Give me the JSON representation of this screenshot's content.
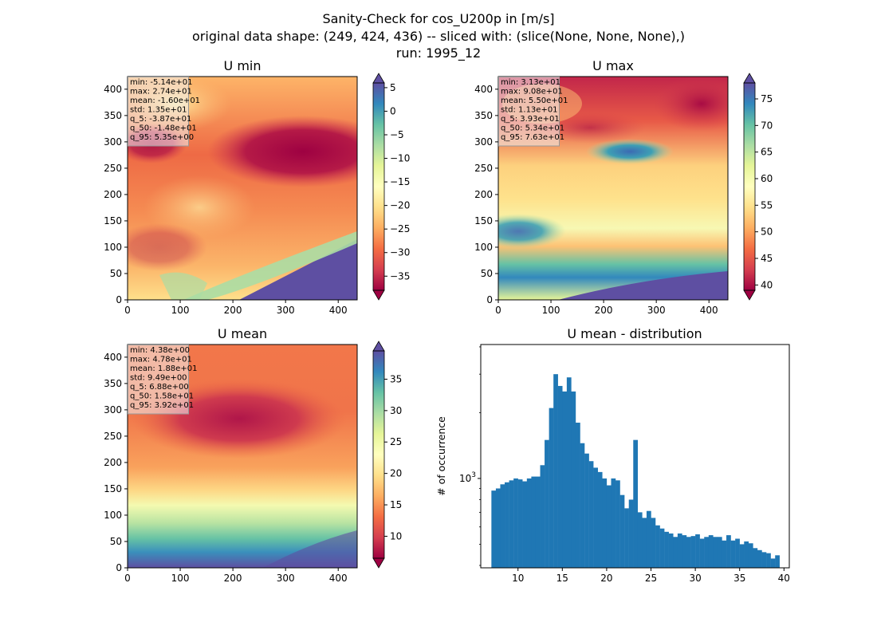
{
  "figure": {
    "title_lines": [
      "Sanity-Check for cos_U200p in [m/s]",
      "original data shape: (249, 424, 436) -- sliced with: (slice(None, None, None),)",
      "run: 1995_12"
    ]
  },
  "colors": {
    "histogram_bar": "#1f77b4",
    "stats_box": "#f2f2f2",
    "colormap": "Spectral"
  },
  "chart_data": [
    {
      "type": "heatmap",
      "title": "U min",
      "colormap": "Spectral",
      "xlim": [
        0,
        436
      ],
      "ylim": [
        0,
        424
      ],
      "xticks": [
        0,
        100,
        200,
        300,
        400
      ],
      "yticks": [
        0,
        50,
        100,
        150,
        200,
        250,
        300,
        350,
        400
      ],
      "colorbar": {
        "range": [
          -38,
          6
        ],
        "ticks": [
          5,
          0,
          -5,
          -10,
          -15,
          -20,
          -25,
          -30,
          -35
        ],
        "extend": "both"
      },
      "stats": [
        "min: -5.14e+01",
        "max: 2.74e+01",
        "mean: -1.60e+01",
        "std: 1.35e+01",
        "q_5: -3.87e+01",
        "q_50: -1.48e+01",
        "q_95: 5.35e+00"
      ]
    },
    {
      "type": "heatmap",
      "title": "U max",
      "colormap": "Spectral",
      "xlim": [
        0,
        436
      ],
      "ylim": [
        0,
        424
      ],
      "xticks": [
        0,
        100,
        200,
        300,
        400
      ],
      "yticks": [
        0,
        50,
        100,
        150,
        200,
        250,
        300,
        350,
        400
      ],
      "colorbar": {
        "range": [
          39,
          78
        ],
        "ticks": [
          75,
          70,
          65,
          60,
          55,
          50,
          45,
          40
        ],
        "extend": "both"
      },
      "stats": [
        "min: 3.13e+01",
        "max: 9.08e+01",
        "mean: 5.50e+01",
        "std: 1.13e+01",
        "q_5: 3.93e+01",
        "q_50: 5.34e+01",
        "q_95: 7.63e+01"
      ]
    },
    {
      "type": "heatmap",
      "title": "U mean",
      "colormap": "Spectral",
      "xlim": [
        0,
        436
      ],
      "ylim": [
        0,
        424
      ],
      "xticks": [
        0,
        100,
        200,
        300,
        400
      ],
      "yticks": [
        0,
        50,
        100,
        150,
        200,
        250,
        300,
        350,
        400
      ],
      "colorbar": {
        "range": [
          6.5,
          39.5
        ],
        "ticks": [
          35,
          30,
          25,
          20,
          15,
          10
        ],
        "extend": "both"
      },
      "stats": [
        "min: 4.38e+00",
        "max: 4.78e+01",
        "mean: 1.88e+01",
        "std: 9.49e+00",
        "q_5: 6.88e+00",
        "q_50: 1.58e+01",
        "q_95: 3.92e+01"
      ]
    },
    {
      "type": "bar",
      "title": "U mean - distribution",
      "ylabel": "# of occurrence",
      "yscale": "log",
      "xlim": [
        5.8,
        40.6
      ],
      "ylim": [
        390,
        4100
      ],
      "xticks": [
        10,
        15,
        20,
        25,
        30,
        35,
        40
      ],
      "ytick_label": {
        "base": "10",
        "exponent": "3",
        "value": 1000
      },
      "x": [
        7,
        7.5,
        8,
        8.5,
        9,
        9.5,
        10,
        10.5,
        11,
        11.5,
        12,
        12.5,
        13,
        13.5,
        14,
        14.5,
        15,
        15.5,
        16,
        16.5,
        17,
        17.5,
        18,
        18.5,
        19,
        19.5,
        20,
        20.5,
        21,
        21.5,
        22,
        22.5,
        23,
        23.5,
        24,
        24.5,
        25,
        25.5,
        26,
        26.5,
        27,
        27.5,
        28,
        28.5,
        29,
        29.5,
        30,
        30.5,
        31,
        31.5,
        32,
        32.5,
        33,
        33.5,
        34,
        34.5,
        35,
        35.5,
        36,
        36.5,
        37,
        37.5,
        38,
        38.5,
        39
      ],
      "values": [
        880,
        900,
        940,
        960,
        980,
        1000,
        990,
        970,
        1000,
        1020,
        1020,
        1150,
        1500,
        2100,
        3000,
        2650,
        2500,
        2900,
        2500,
        1800,
        1450,
        1300,
        1200,
        1120,
        1070,
        1000,
        930,
        1000,
        980,
        840,
        730,
        800,
        1500,
        700,
        660,
        710,
        660,
        610,
        590,
        570,
        560,
        540,
        560,
        550,
        540,
        545,
        555,
        530,
        540,
        550,
        540,
        540,
        520,
        550,
        520,
        530,
        500,
        515,
        505,
        480,
        470,
        460,
        455,
        430,
        445
      ]
    }
  ]
}
